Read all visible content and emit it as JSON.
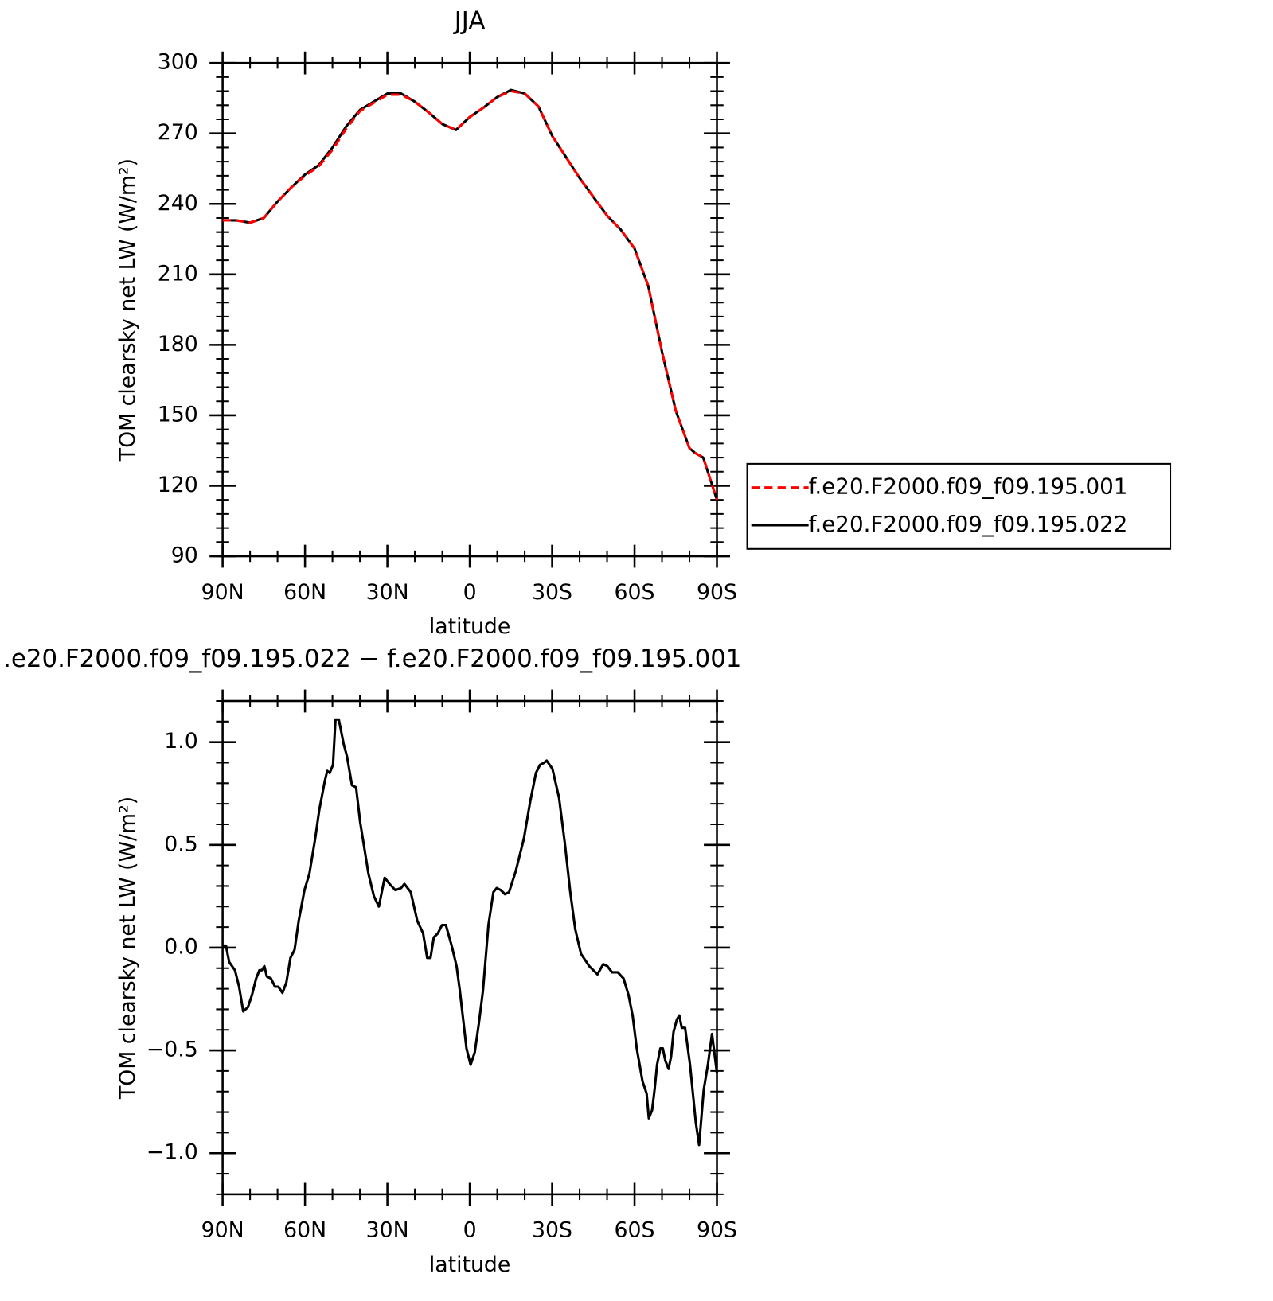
{
  "chart_data": [
    {
      "type": "line",
      "title": "JJA",
      "xlabel": "latitude",
      "ylabel": "TOM clearsky net LW (W/m²)",
      "x": [
        90,
        85,
        80,
        75,
        70,
        65,
        60,
        55,
        50,
        45,
        40,
        35,
        30,
        25,
        20,
        15,
        10,
        5,
        0,
        -5,
        -10,
        -15,
        -20,
        -25,
        -30,
        -35,
        -40,
        -45,
        -50,
        -55,
        -60,
        -65,
        -70,
        -75,
        -80,
        -82,
        -85,
        -90
      ],
      "series": [
        {
          "name": "f.e20.F2000.f09_f09.195.001",
          "color": "#ff0000",
          "dash": true,
          "values": [
            233,
            233,
            232,
            234,
            241,
            247,
            252,
            256,
            263,
            272,
            279.5,
            283,
            286.5,
            286.5,
            283.5,
            279,
            274,
            271.5,
            277,
            281,
            285.5,
            288,
            287,
            281.5,
            269,
            260,
            251,
            243,
            235,
            229,
            221,
            205,
            177,
            152,
            136,
            134,
            132,
            114
          ]
        },
        {
          "name": "f.e20.F2000.f09_f09.195.022",
          "color": "#000000",
          "dash": false,
          "values": [
            233,
            233,
            232,
            234,
            241,
            247,
            252.5,
            256.5,
            264,
            273,
            280,
            283.5,
            287,
            287,
            283.5,
            279,
            274,
            271.5,
            277,
            281,
            285.5,
            288.5,
            287,
            281.5,
            269,
            260,
            251,
            243,
            235,
            229,
            221,
            205,
            177,
            152,
            136,
            134,
            132,
            114
          ]
        }
      ],
      "xlim": [
        90,
        -90
      ],
      "xticks": [
        {
          "value": 90,
          "label": "90N"
        },
        {
          "value": 60,
          "label": "60N"
        },
        {
          "value": 30,
          "label": "30N"
        },
        0,
        {
          "value": -30,
          "label": "30S"
        },
        {
          "value": -60,
          "label": "60S"
        },
        {
          "value": -90,
          "label": "90S"
        }
      ],
      "ylim": [
        90,
        300
      ],
      "yticks": [
        90,
        120,
        150,
        180,
        210,
        240,
        270,
        300
      ],
      "legend": "right"
    },
    {
      "type": "line",
      "title": ".e20.F2000.f09_f09.195.022 − f.e20.F2000.f09_f09.195.001",
      "xlabel": "latitude",
      "ylabel": "TOM clearsky net LW (W/m²)",
      "x": [
        90,
        88.8,
        87.6,
        85.5,
        84,
        82.5,
        80.8,
        79.3,
        77.8,
        76.6,
        75.7,
        74.8,
        73.9,
        72.4,
        70.9,
        69.7,
        68.2,
        66.8,
        65.3,
        63.8,
        62.3,
        60.2,
        58.4,
        56.3,
        54.8,
        52.8,
        51.9,
        51,
        49.8,
        48.9,
        47.7,
        45.9,
        44.7,
        42.9,
        41.4,
        39.9,
        36.9,
        34.9,
        33.1,
        31,
        29.2,
        27.1,
        25,
        23.8,
        21.5,
        19.1,
        17,
        15.5,
        14.3,
        13.1,
        11.6,
        10.1,
        8.7,
        6.6,
        4.8,
        3.6,
        2.4,
        1.2,
        -0.3,
        -1.8,
        -3.3,
        -4.8,
        -6.8,
        -8.6,
        -9.8,
        -11.3,
        -12.8,
        -14.3,
        -16.7,
        -19.7,
        -22,
        -24.1,
        -25.6,
        -27.1,
        -28,
        -30.1,
        -32.5,
        -34.6,
        -36.6,
        -38.4,
        -40.5,
        -43.5,
        -46.5,
        -48.6,
        -50.1,
        -51.8,
        -53.9,
        -56,
        -57.8,
        -59.3,
        -60.8,
        -62.9,
        -64.4,
        -65.2,
        -66.4,
        -67.3,
        -68.2,
        -69.4,
        -70.3,
        -71.2,
        -72.4,
        -73.3,
        -74.2,
        -75.4,
        -76.3,
        -77.2,
        -78.4,
        -80.2,
        -82.3,
        -83.5,
        -85.2,
        -86.7,
        -88.2,
        -90
      ],
      "series": [
        {
          "color": "#000000",
          "values": [
            0.01,
            0.01,
            -0.07,
            -0.11,
            -0.19,
            -0.31,
            -0.29,
            -0.23,
            -0.15,
            -0.11,
            -0.11,
            -0.09,
            -0.14,
            -0.15,
            -0.19,
            -0.19,
            -0.22,
            -0.17,
            -0.05,
            -0.01,
            0.13,
            0.28,
            0.36,
            0.53,
            0.67,
            0.81,
            0.86,
            0.85,
            0.89,
            1.11,
            1.11,
            0.99,
            0.93,
            0.79,
            0.78,
            0.61,
            0.36,
            0.25,
            0.2,
            0.34,
            0.31,
            0.28,
            0.29,
            0.31,
            0.27,
            0.13,
            0.07,
            -0.05,
            -0.05,
            0.05,
            0.07,
            0.11,
            0.11,
            0.01,
            -0.09,
            -0.21,
            -0.35,
            -0.49,
            -0.57,
            -0.51,
            -0.37,
            -0.21,
            0.11,
            0.27,
            0.29,
            0.28,
            0.26,
            0.27,
            0.37,
            0.53,
            0.71,
            0.85,
            0.89,
            0.9,
            0.91,
            0.87,
            0.73,
            0.51,
            0.27,
            0.09,
            -0.03,
            -0.09,
            -0.13,
            -0.08,
            -0.09,
            -0.12,
            -0.12,
            -0.15,
            -0.23,
            -0.33,
            -0.49,
            -0.65,
            -0.71,
            -0.83,
            -0.79,
            -0.69,
            -0.57,
            -0.49,
            -0.49,
            -0.55,
            -0.59,
            -0.53,
            -0.41,
            -0.35,
            -0.33,
            -0.39,
            -0.39,
            -0.57,
            -0.85,
            -0.96,
            -0.69,
            -0.57,
            -0.42,
            -0.61
          ]
        }
      ],
      "xlim": [
        90,
        -90
      ],
      "xticks": [
        {
          "value": 90,
          "label": "90N"
        },
        {
          "value": 60,
          "label": "60N"
        },
        {
          "value": 30,
          "label": "30N"
        },
        0,
        {
          "value": -30,
          "label": "30S"
        },
        {
          "value": -60,
          "label": "60S"
        },
        {
          "value": -90,
          "label": "90S"
        }
      ],
      "ylim": [
        -1.2,
        1.2
      ],
      "yticks": [
        {
          "value": -1,
          "label": "−1.0"
        },
        {
          "value": -0.5,
          "label": "−0.5"
        },
        {
          "value": 0,
          "label": "0.0"
        },
        0.5,
        {
          "value": 1,
          "label": "1.0"
        }
      ]
    }
  ]
}
